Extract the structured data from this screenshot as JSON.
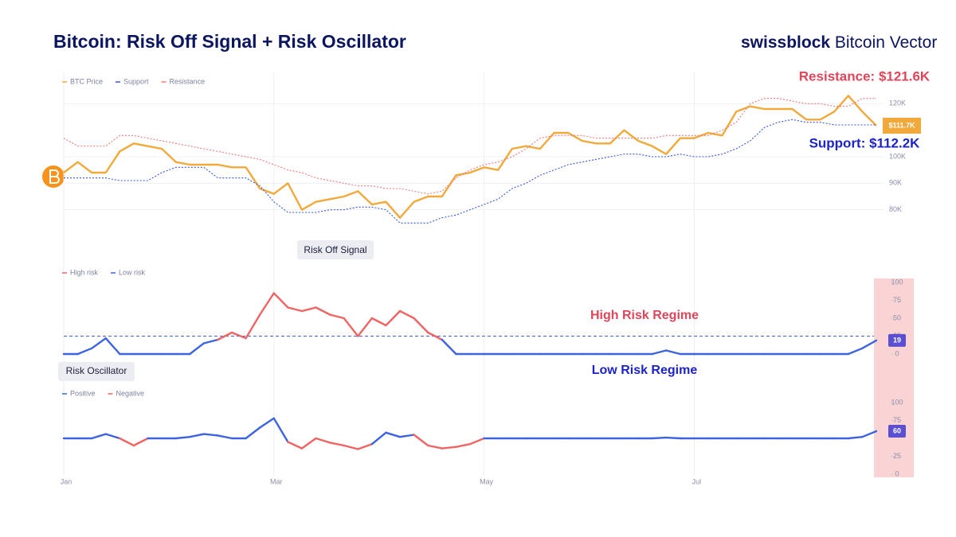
{
  "brand": {
    "name": "swissblock",
    "product": "Bitcoin Vector"
  },
  "chart_data": [
    {
      "type": "line",
      "title": "Bitcoin: Risk Off Signal + Risk Oscillator",
      "series": [
        {
          "name": "BTC Price",
          "color": "#f2a93b",
          "style": "solid",
          "values": [
            94000,
            98000,
            94000,
            94000,
            102000,
            105000,
            104000,
            103000,
            98000,
            97000,
            97000,
            97000,
            96000,
            96000,
            88000,
            86000,
            90000,
            80000,
            83000,
            84000,
            85000,
            87000,
            82000,
            83000,
            77000,
            83000,
            85000,
            85000,
            93000,
            94000,
            96000,
            95000,
            103000,
            104000,
            103000,
            109000,
            109000,
            106000,
            105000,
            105000,
            110000,
            106000,
            104000,
            101000,
            107000,
            107000,
            109000,
            108000,
            117000,
            119000,
            118000,
            118000,
            118000,
            114000,
            114000,
            117000,
            123000,
            117000,
            111700
          ]
        },
        {
          "name": "Support",
          "color": "#3557dd",
          "style": "dotted",
          "values": [
            92000,
            92000,
            92000,
            92000,
            91000,
            91000,
            91000,
            94000,
            96000,
            96000,
            96000,
            92000,
            92000,
            92000,
            89000,
            83000,
            79000,
            79000,
            79000,
            80000,
            80000,
            81000,
            81000,
            80000,
            75000,
            75000,
            75000,
            77000,
            78000,
            80000,
            82000,
            84000,
            88000,
            90000,
            93000,
            95000,
            97000,
            98000,
            99000,
            100000,
            101000,
            101000,
            100000,
            100000,
            101000,
            100000,
            100000,
            101000,
            103000,
            106000,
            111000,
            113000,
            114000,
            113000,
            113000,
            112000,
            112000,
            112000,
            112000
          ]
        },
        {
          "name": "Resistance",
          "color": "#f07a7a",
          "style": "dotted",
          "values": [
            107000,
            104000,
            104000,
            104000,
            108000,
            108000,
            107000,
            106000,
            105000,
            104000,
            103000,
            102000,
            101000,
            100000,
            99000,
            97000,
            95000,
            94000,
            92000,
            91000,
            90000,
            89000,
            89000,
            88000,
            88000,
            87000,
            86000,
            87000,
            92000,
            95000,
            97000,
            98000,
            100000,
            103000,
            107000,
            108000,
            108000,
            108000,
            107000,
            107000,
            107000,
            107000,
            107000,
            108000,
            108000,
            108000,
            108000,
            110000,
            113000,
            120000,
            122000,
            122000,
            121000,
            120000,
            120000,
            119000,
            119000,
            122000,
            122000
          ]
        }
      ],
      "ylim": [
        70000,
        130000
      ],
      "yticks": [
        {
          "value": 80000,
          "label": "80K"
        },
        {
          "value": 90000,
          "label": "90K"
        },
        {
          "value": 100000,
          "label": "100K"
        },
        {
          "value": 120000,
          "label": "120K"
        }
      ],
      "price_tag": {
        "value": 111700,
        "label": "$111.7K"
      },
      "annotations": [
        {
          "text": "Resistance: $121.6K",
          "color": "#e0455a"
        },
        {
          "text": "Support: $112.2K",
          "color": "#1c23c9"
        }
      ]
    },
    {
      "type": "threshold_line",
      "label": "Risk Off Signal",
      "series": [
        {
          "name": "High risk",
          "color": "#f06464"
        },
        {
          "name": "Low risk",
          "color": "#3d63e0"
        }
      ],
      "values": [
        0,
        0,
        8,
        22,
        0,
        0,
        0,
        0,
        0,
        0,
        15,
        20,
        30,
        22,
        55,
        85,
        65,
        60,
        65,
        55,
        50,
        25,
        50,
        40,
        60,
        50,
        30,
        20,
        0,
        0,
        0,
        0,
        0,
        0,
        0,
        0,
        0,
        0,
        0,
        0,
        0,
        0,
        0,
        5,
        0,
        0,
        0,
        0,
        0,
        0,
        0,
        0,
        0,
        0,
        0,
        0,
        0,
        8,
        19
      ],
      "threshold": 25,
      "show_threshold": true,
      "ylim": [
        0,
        100
      ],
      "yticks": [
        0,
        25,
        50,
        75,
        100
      ],
      "annotations": [
        {
          "text": "High Risk Regime",
          "color": "#e0455a"
        },
        {
          "text": "Low Risk Regime",
          "color": "#1c23c9"
        }
      ]
    },
    {
      "type": "threshold_line",
      "label": "Risk Oscillator",
      "series": [
        {
          "name": "Positive",
          "color": "#3d63e0"
        },
        {
          "name": "Negative",
          "color": "#f06464"
        }
      ],
      "values": [
        50,
        50,
        50,
        56,
        50,
        40,
        50,
        50,
        50,
        52,
        56,
        54,
        50,
        50,
        65,
        78,
        45,
        36,
        50,
        44,
        40,
        35,
        42,
        58,
        52,
        55,
        40,
        36,
        38,
        42,
        50,
        50,
        50,
        50,
        50,
        50,
        50,
        50,
        50,
        50,
        50,
        50,
        50,
        51,
        50,
        50,
        50,
        50,
        50,
        50,
        50,
        50,
        50,
        50,
        50,
        50,
        50,
        52,
        60
      ],
      "threshold": 50,
      "show_threshold": false,
      "ylim": [
        0,
        100
      ],
      "yticks": [
        0,
        25,
        75,
        100
      ],
      "categories": [
        "Jan",
        null,
        null,
        null,
        null,
        null,
        null,
        null,
        null,
        null,
        null,
        null,
        null,
        null,
        null,
        "Mar",
        null,
        null,
        null,
        null,
        null,
        null,
        null,
        null,
        null,
        null,
        null,
        null,
        null,
        null,
        "May",
        null,
        null,
        null,
        null,
        null,
        null,
        null,
        null,
        null,
        null,
        null,
        null,
        null,
        null,
        "Jul",
        null,
        null,
        null,
        null,
        null,
        null,
        null,
        null,
        null,
        null,
        null,
        null,
        null
      ]
    }
  ]
}
